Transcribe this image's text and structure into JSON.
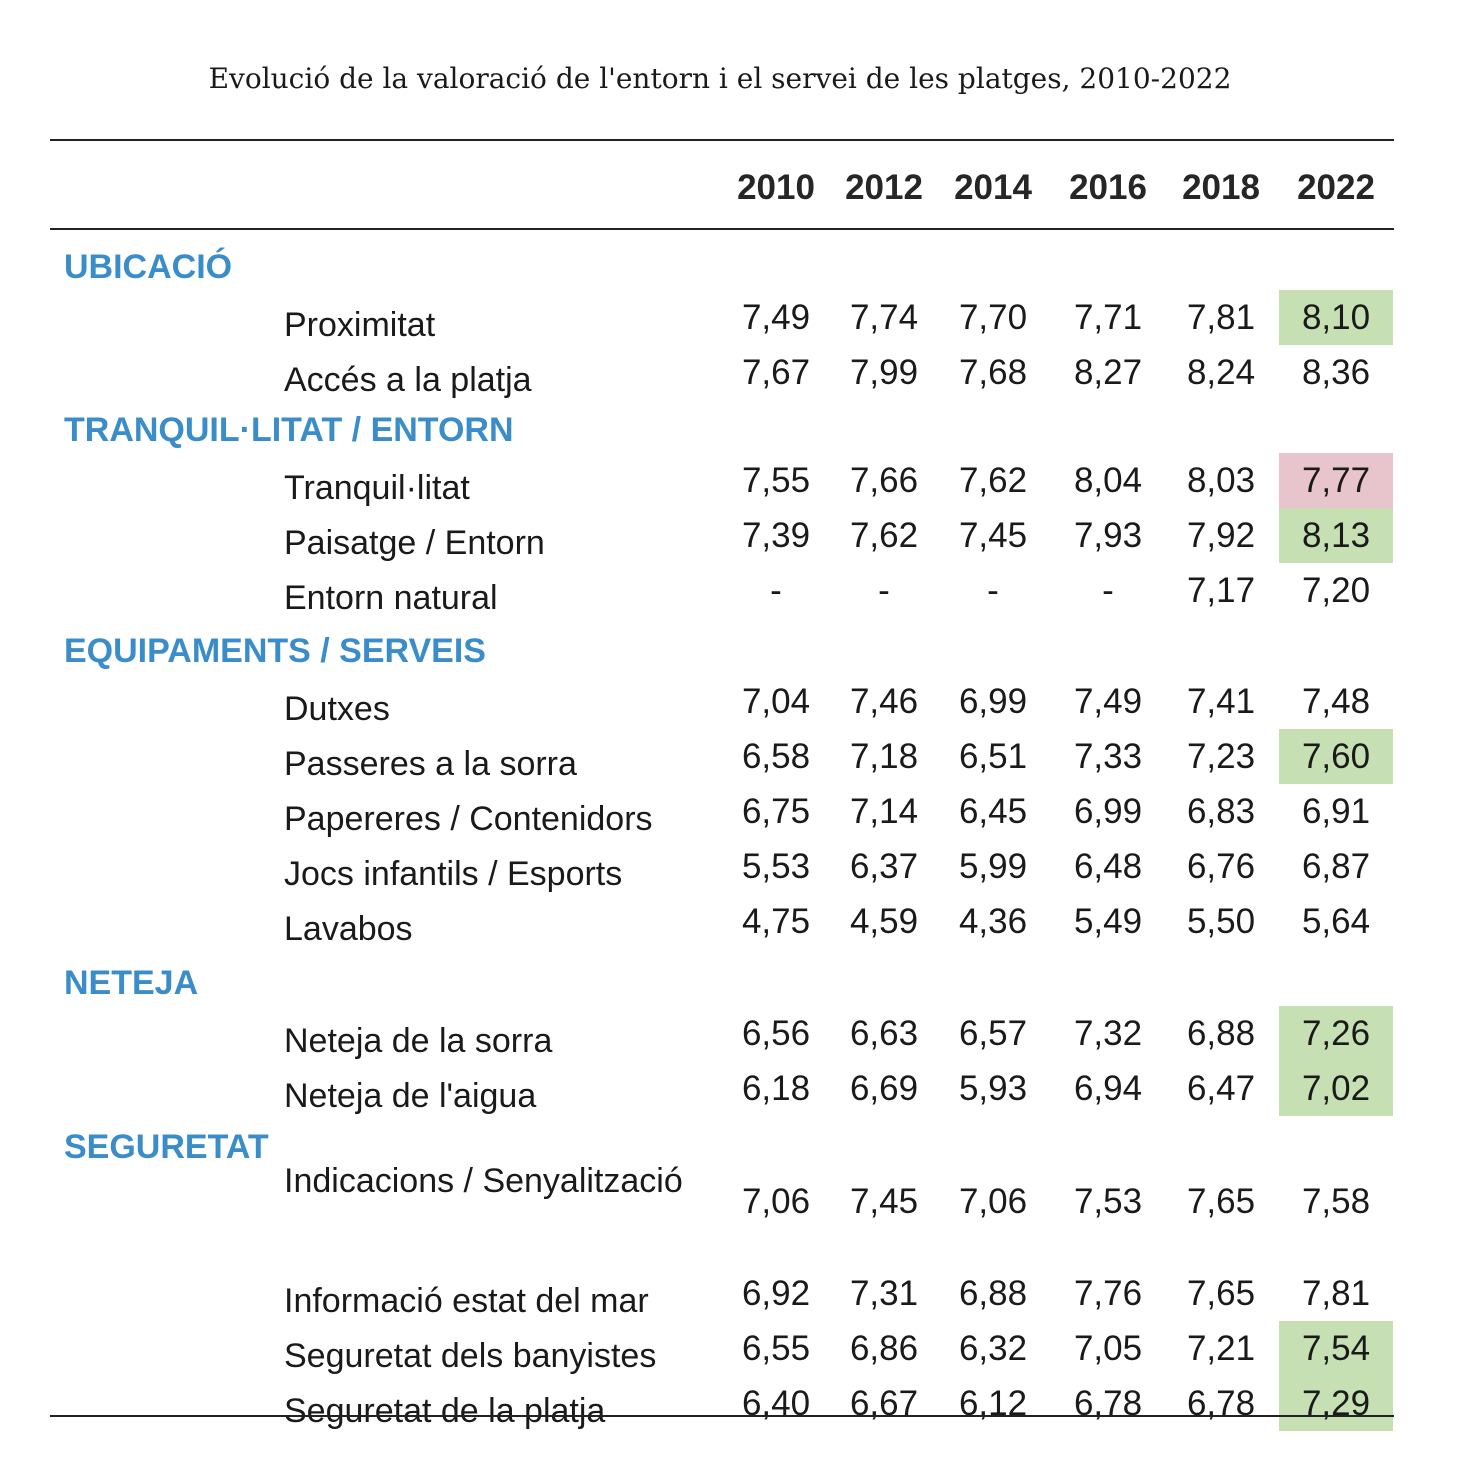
{
  "title": "Evolució de la valoració de l'entorn i el servei de les platges, 2010-2022",
  "years": [
    "2010",
    "2012",
    "2014",
    "2016",
    "2018",
    "2022"
  ],
  "highlight_colors": {
    "improve": "#c6e0b4",
    "decline": "#e8c4cc"
  },
  "sections": [
    {
      "name": "UBICACIÓ",
      "rows": [
        {
          "label": "Proximitat",
          "values": [
            "7,49",
            "7,74",
            "7,70",
            "7,71",
            "7,81",
            "8,10"
          ],
          "highlight": "improve"
        },
        {
          "label": "Accés a la platja",
          "values": [
            "7,67",
            "7,99",
            "7,68",
            "8,27",
            "8,24",
            "8,36"
          ],
          "highlight": ""
        }
      ]
    },
    {
      "name": "TRANQUIL·LITAT / ENTORN",
      "rows": [
        {
          "label": "Tranquil·litat",
          "values": [
            "7,55",
            "7,66",
            "7,62",
            "8,04",
            "8,03",
            "7,77"
          ],
          "highlight": "decline"
        },
        {
          "label": "Paisatge / Entorn",
          "values": [
            "7,39",
            "7,62",
            "7,45",
            "7,93",
            "7,92",
            "8,13"
          ],
          "highlight": "improve"
        },
        {
          "label": "Entorn natural",
          "values": [
            "-",
            "-",
            "-",
            "-",
            "7,17",
            "7,20"
          ],
          "highlight": ""
        }
      ]
    },
    {
      "name": "EQUIPAMENTS / SERVEIS",
      "rows": [
        {
          "label": "Dutxes",
          "values": [
            "7,04",
            "7,46",
            "6,99",
            "7,49",
            "7,41",
            "7,48"
          ],
          "highlight": ""
        },
        {
          "label": "Passeres a la sorra",
          "values": [
            "6,58",
            "7,18",
            "6,51",
            "7,33",
            "7,23",
            "7,60"
          ],
          "highlight": "improve"
        },
        {
          "label": "Papereres / Contenidors",
          "values": [
            "6,75",
            "7,14",
            "6,45",
            "6,99",
            "6,83",
            "6,91"
          ],
          "highlight": ""
        },
        {
          "label": "Jocs infantils / Esports",
          "values": [
            "5,53",
            "6,37",
            "5,99",
            "6,48",
            "6,76",
            "6,87"
          ],
          "highlight": ""
        },
        {
          "label": "Lavabos",
          "values": [
            "4,75",
            "4,59",
            "4,36",
            "5,49",
            "5,50",
            "5,64"
          ],
          "highlight": ""
        }
      ]
    },
    {
      "name": "NETEJA",
      "rows": [
        {
          "label": "Neteja de la sorra",
          "values": [
            "6,56",
            "6,63",
            "6,57",
            "7,32",
            "6,88",
            "7,26"
          ],
          "highlight": "improve"
        },
        {
          "label": "Neteja de l'aigua",
          "values": [
            "6,18",
            "6,69",
            "5,93",
            "6,94",
            "6,47",
            "7,02"
          ],
          "highlight": "improve"
        }
      ]
    },
    {
      "name": "SEGURETAT",
      "rows": [
        {
          "label": "Indicacions / Senyalització",
          "values": [
            "7,06",
            "7,45",
            "7,06",
            "7,53",
            "7,65",
            "7,58"
          ],
          "highlight": "",
          "tall": true
        },
        {
          "label": "Informació estat del mar",
          "values": [
            "6,92",
            "7,31",
            "6,88",
            "7,76",
            "7,65",
            "7,81"
          ],
          "highlight": ""
        },
        {
          "label": "Seguretat dels banyistes",
          "values": [
            "6,55",
            "6,86",
            "6,32",
            "7,05",
            "7,21",
            "7,54"
          ],
          "highlight": "improve"
        },
        {
          "label": "Seguretat de la platja",
          "values": [
            "6,40",
            "6,67",
            "6,12",
            "6,78",
            "6,78",
            "7,29"
          ],
          "highlight": "improve"
        }
      ]
    }
  ]
}
